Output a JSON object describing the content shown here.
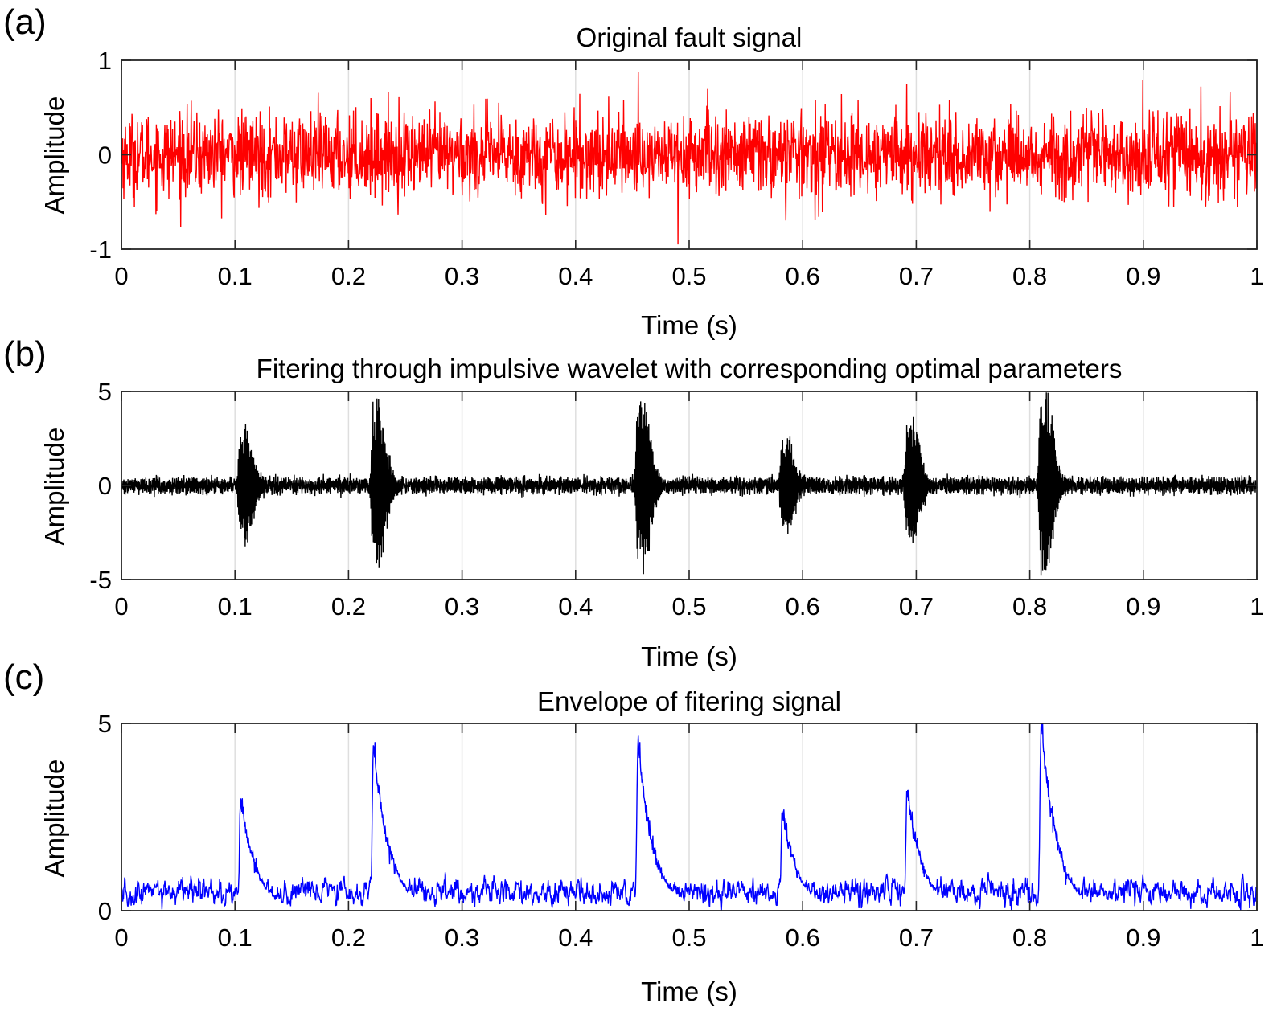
{
  "chart_data": [
    {
      "panel_label": "(a)",
      "type": "line",
      "title": "Original fault signal",
      "xlabel": "Time (s)",
      "ylabel": "Amplitude",
      "xlim": [
        0,
        1
      ],
      "ylim": [
        -1,
        1
      ],
      "xticks": [
        "0",
        "0.1",
        "0.2",
        "0.3",
        "0.4",
        "0.5",
        "0.6",
        "0.7",
        "0.8",
        "0.9",
        "1"
      ],
      "yticks": [
        "-1",
        "0",
        "1"
      ],
      "grid": "vertical",
      "color": "#ff0000",
      "signal": {
        "kind": "noise",
        "std": 0.22,
        "peak_max": 0.88,
        "peak_min": -0.95
      }
    },
    {
      "panel_label": "(b)",
      "type": "line",
      "title": "Fitering through impulsive wavelet with corresponding optimal parameters",
      "xlabel": "Time (s)",
      "ylabel": "Amplitude",
      "xlim": [
        0,
        1
      ],
      "ylim": [
        -5,
        5
      ],
      "xticks": [
        "0",
        "0.1",
        "0.2",
        "0.3",
        "0.4",
        "0.5",
        "0.6",
        "0.7",
        "0.8",
        "0.9",
        "1"
      ],
      "yticks": [
        "-5",
        "0",
        "5"
      ],
      "grid": "vertical",
      "color": "#000000",
      "signal": {
        "kind": "impulses",
        "noise_std": 0.35,
        "impulses": [
          {
            "t": 0.105,
            "amp": 2.9
          },
          {
            "t": 0.222,
            "amp": 4.4
          },
          {
            "t": 0.455,
            "amp": 4.5
          },
          {
            "t": 0.582,
            "amp": 2.5
          },
          {
            "t": 0.692,
            "amp": 3.3
          },
          {
            "t": 0.81,
            "amp": 4.9
          }
        ]
      }
    },
    {
      "panel_label": "(c)",
      "type": "line",
      "title": "Envelope of fitering signal",
      "xlabel": "Time (s)",
      "ylabel": "Amplitude",
      "xlim": [
        0,
        1
      ],
      "ylim": [
        0,
        5
      ],
      "xticks": [
        "0",
        "0.1",
        "0.2",
        "0.3",
        "0.4",
        "0.5",
        "0.6",
        "0.7",
        "0.8",
        "0.9",
        "1"
      ],
      "yticks": [
        "0",
        "5"
      ],
      "grid": "vertical",
      "color": "#0000ff",
      "signal": {
        "kind": "envelope",
        "baseline": 0.5,
        "impulses": [
          {
            "t": 0.105,
            "amp": 3.0
          },
          {
            "t": 0.222,
            "amp": 4.5
          },
          {
            "t": 0.455,
            "amp": 4.5
          },
          {
            "t": 0.582,
            "amp": 2.7
          },
          {
            "t": 0.692,
            "amp": 3.2
          },
          {
            "t": 0.81,
            "amp": 5.0
          }
        ]
      }
    }
  ]
}
